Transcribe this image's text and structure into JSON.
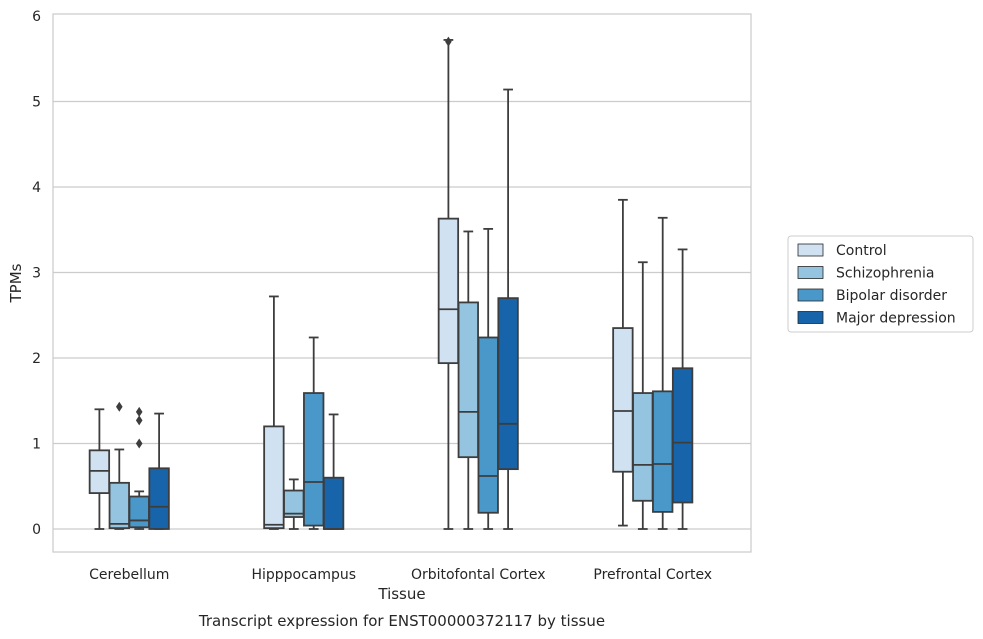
{
  "chart_data": {
    "type": "boxplot",
    "title": "Transcript expression for ENST00000372117 by tissue",
    "xlabel": "Tissue",
    "ylabel": "TPMs",
    "ylim": [
      -0.27,
      6.02
    ],
    "yticks": [
      "0",
      "1",
      "2",
      "3",
      "4",
      "5",
      "6"
    ],
    "grid": true,
    "legend_position": "right",
    "categories": [
      "Cerebellum",
      "Hipppocampus",
      "Orbitofontal Cortex",
      "Prefrontal Cortex"
    ],
    "series": [
      {
        "name": "Control",
        "color": "#d0e1f2",
        "boxes": [
          {
            "whislo": 0.0,
            "q1": 0.42,
            "med": 0.68,
            "q3": 0.92,
            "whishi": 1.4,
            "fliers": []
          },
          {
            "whislo": 0.0,
            "q1": 0.01,
            "med": 0.05,
            "q3": 1.2,
            "whishi": 2.72,
            "fliers": []
          },
          {
            "whislo": 0.0,
            "q1": 1.94,
            "med": 2.57,
            "q3": 3.63,
            "whishi": 5.72,
            "fliers": [
              5.7
            ]
          },
          {
            "whislo": 0.04,
            "q1": 0.67,
            "med": 1.38,
            "q3": 2.35,
            "whishi": 3.85,
            "fliers": []
          }
        ]
      },
      {
        "name": "Schizophrenia",
        "color": "#94c4df",
        "boxes": [
          {
            "whislo": 0.0,
            "q1": 0.01,
            "med": 0.06,
            "q3": 0.54,
            "whishi": 0.93,
            "fliers": [
              1.43
            ]
          },
          {
            "whislo": 0.0,
            "q1": 0.14,
            "med": 0.18,
            "q3": 0.45,
            "whishi": 0.58,
            "fliers": []
          },
          {
            "whislo": 0.0,
            "q1": 0.84,
            "med": 1.37,
            "q3": 2.65,
            "whishi": 3.48,
            "fliers": []
          },
          {
            "whislo": 0.0,
            "q1": 0.33,
            "med": 0.75,
            "q3": 1.59,
            "whishi": 3.12,
            "fliers": []
          }
        ]
      },
      {
        "name": "Bipolar disorder",
        "color": "#4a98c9",
        "boxes": [
          {
            "whislo": 0.0,
            "q1": 0.02,
            "med": 0.1,
            "q3": 0.38,
            "whishi": 0.44,
            "fliers": [
              1.0,
              1.27,
              1.37
            ]
          },
          {
            "whislo": 0.0,
            "q1": 0.04,
            "med": 0.55,
            "q3": 1.59,
            "whishi": 2.24,
            "fliers": []
          },
          {
            "whislo": 0.0,
            "q1": 0.19,
            "med": 0.62,
            "q3": 2.24,
            "whishi": 3.51,
            "fliers": []
          },
          {
            "whislo": 0.0,
            "q1": 0.2,
            "med": 0.76,
            "q3": 1.61,
            "whishi": 3.64,
            "fliers": []
          }
        ]
      },
      {
        "name": "Major depression",
        "color": "#1764ab",
        "boxes": [
          {
            "whislo": 0.0,
            "q1": 0.0,
            "med": 0.26,
            "q3": 0.71,
            "whishi": 1.35,
            "fliers": []
          },
          {
            "whislo": 0.0,
            "q1": 0.0,
            "med": 0.0,
            "q3": 0.6,
            "whishi": 1.34,
            "fliers": []
          },
          {
            "whislo": 0.0,
            "q1": 0.7,
            "med": 1.23,
            "q3": 2.7,
            "whishi": 5.14,
            "fliers": []
          },
          {
            "whislo": 0.0,
            "q1": 0.31,
            "med": 1.01,
            "q3": 1.88,
            "whishi": 3.27,
            "fliers": []
          }
        ]
      }
    ]
  }
}
